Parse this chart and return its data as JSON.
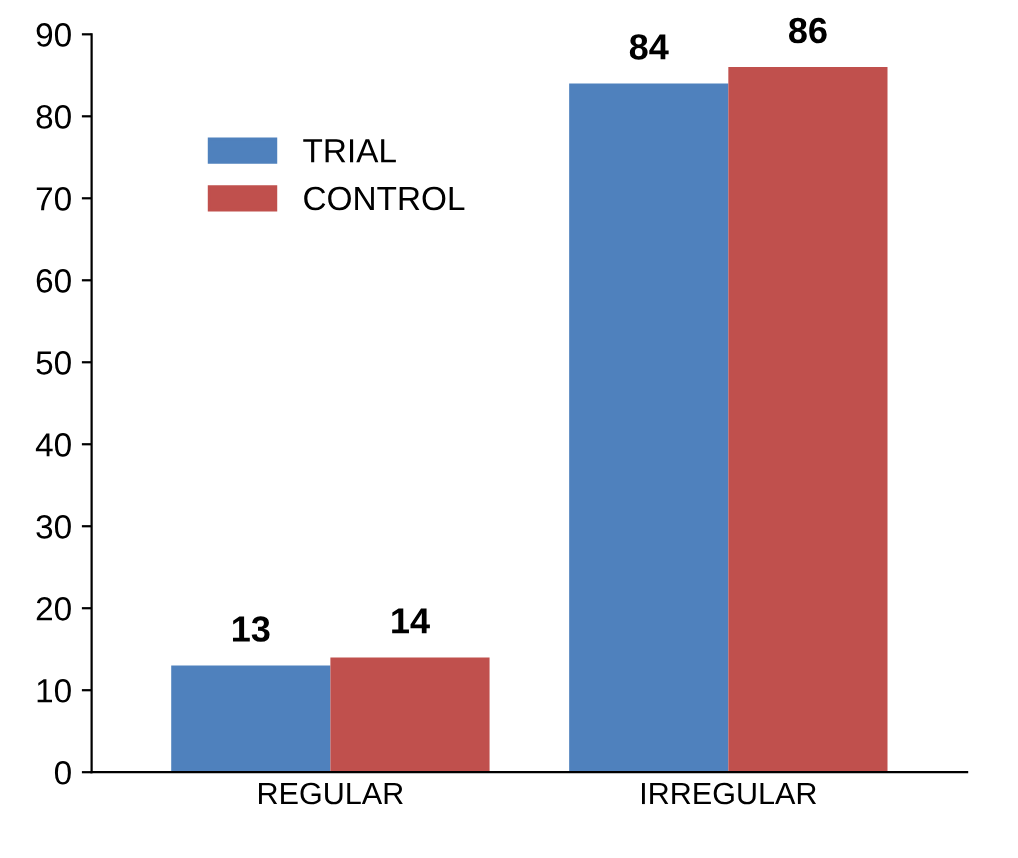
{
  "chart_data": {
    "type": "bar",
    "categories": [
      "REGULAR",
      "IRREGULAR"
    ],
    "series": [
      {
        "name": "TRIAL",
        "color": "#4f81bd",
        "values": [
          13,
          84
        ]
      },
      {
        "name": "CONTROL",
        "color": "#c0504d",
        "values": [
          14,
          86
        ]
      }
    ],
    "ylim": [
      0,
      90
    ],
    "yticks": [
      0,
      10,
      20,
      30,
      40,
      50,
      60,
      70,
      80,
      90
    ],
    "grid": false,
    "legend": "top left",
    "data_labels": true
  }
}
